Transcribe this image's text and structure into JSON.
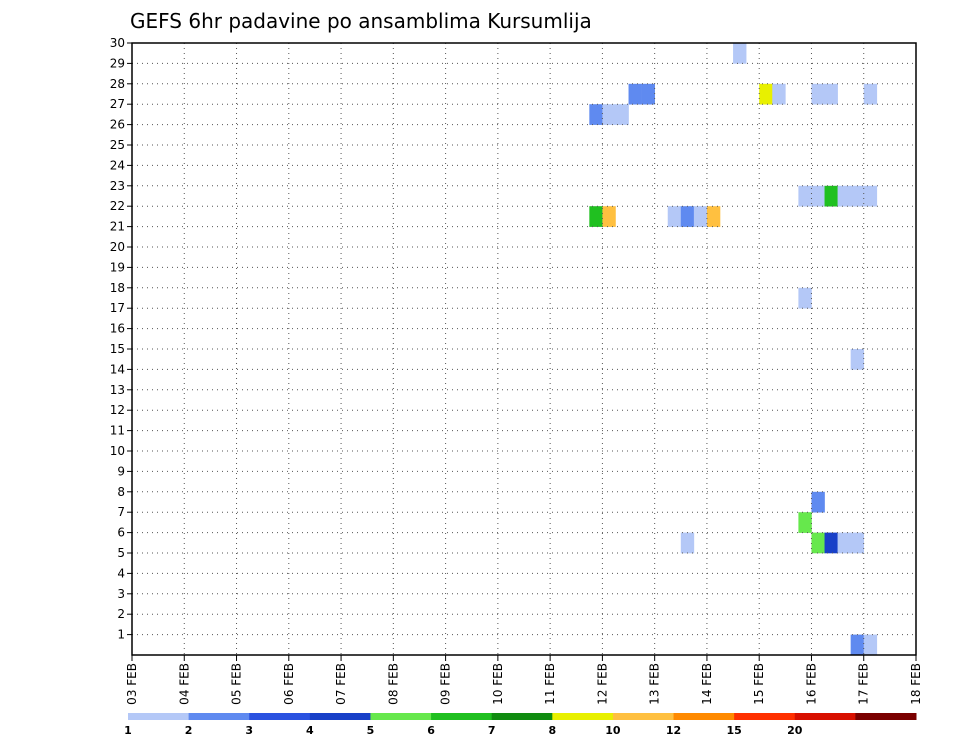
{
  "chart_data": {
    "type": "heatmap",
    "title": "GEFS 6hr padavine po ansamblima Kursumlija",
    "xlabel": "",
    "ylabel": "",
    "x_ticks": [
      "03 FEB",
      "04 FEB",
      "05 FEB",
      "06 FEB",
      "07 FEB",
      "08 FEB",
      "09 FEB",
      "10 FEB",
      "11 FEB",
      "12 FEB",
      "13 FEB",
      "14 FEB",
      "15 FEB",
      "16 FEB",
      "17 FEB",
      "18 FEB"
    ],
    "y_ticks": [
      1,
      2,
      3,
      4,
      5,
      6,
      7,
      8,
      9,
      10,
      11,
      12,
      13,
      14,
      15,
      16,
      17,
      18,
      19,
      20,
      21,
      22,
      23,
      24,
      25,
      26,
      27,
      28,
      29,
      30
    ],
    "xlim": [
      0,
      60
    ],
    "ylim": [
      0,
      30
    ],
    "grid": true,
    "legend": {
      "placement": "bottom",
      "labels": [
        "1",
        "2",
        "3",
        "4",
        "5",
        "6",
        "7",
        "8",
        "10",
        "12",
        "15",
        "20"
      ],
      "colors": [
        "#b4c8f7",
        "#5f8af0",
        "#2a52e0",
        "#1840c8",
        "#66e84c",
        "#20c020",
        "#108c10",
        "#e8f000",
        "#ffc040",
        "#ff8a00",
        "#ff3000",
        "#d81000",
        "#7a0000"
      ]
    },
    "cells": [
      {
        "x": 47,
        "y": 30,
        "c": 0
      },
      {
        "x": 39,
        "y": 28,
        "c": 1
      },
      {
        "x": 40,
        "y": 28,
        "c": 1
      },
      {
        "x": 49,
        "y": 28,
        "c": 7
      },
      {
        "x": 50,
        "y": 28,
        "c": 0
      },
      {
        "x": 53,
        "y": 28,
        "c": 0
      },
      {
        "x": 54,
        "y": 28,
        "c": 0
      },
      {
        "x": 57,
        "y": 28,
        "c": 0
      },
      {
        "x": 36,
        "y": 27,
        "c": 1
      },
      {
        "x": 37,
        "y": 27,
        "c": 0
      },
      {
        "x": 38,
        "y": 27,
        "c": 0
      },
      {
        "x": 52,
        "y": 23,
        "c": 0
      },
      {
        "x": 53,
        "y": 23,
        "c": 0
      },
      {
        "x": 54,
        "y": 23,
        "c": 5
      },
      {
        "x": 55,
        "y": 23,
        "c": 0
      },
      {
        "x": 56,
        "y": 23,
        "c": 0
      },
      {
        "x": 57,
        "y": 23,
        "c": 0
      },
      {
        "x": 36,
        "y": 22,
        "c": 5
      },
      {
        "x": 37,
        "y": 22,
        "c": 8
      },
      {
        "x": 42,
        "y": 22,
        "c": 0
      },
      {
        "x": 43,
        "y": 22,
        "c": 1
      },
      {
        "x": 44,
        "y": 22,
        "c": 0
      },
      {
        "x": 45,
        "y": 22,
        "c": 8
      },
      {
        "x": 52,
        "y": 18,
        "c": 0
      },
      {
        "x": 56,
        "y": 15,
        "c": 0
      },
      {
        "x": 53,
        "y": 8,
        "c": 1
      },
      {
        "x": 52,
        "y": 7,
        "c": 4
      },
      {
        "x": 43,
        "y": 6,
        "c": 0
      },
      {
        "x": 53,
        "y": 6,
        "c": 4
      },
      {
        "x": 54,
        "y": 6,
        "c": 3
      },
      {
        "x": 55,
        "y": 6,
        "c": 0
      },
      {
        "x": 56,
        "y": 6,
        "c": 0
      },
      {
        "x": 56,
        "y": 1,
        "c": 1
      },
      {
        "x": 57,
        "y": 1,
        "c": 0
      }
    ]
  }
}
